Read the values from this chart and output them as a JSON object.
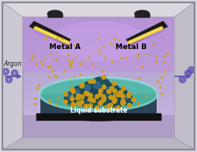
{
  "bg_outer": "#d8d4d8",
  "wall_light": "#e8e4e8",
  "wall_mid": "#d0ccd4",
  "wall_dark": "#b8b4bc",
  "inner_bg_top": "#c8b8e0",
  "inner_bg_bot": "#a898c8",
  "floor_color": "#9890a8",
  "target_color": "#1a1a1a",
  "target_edge": "#333333",
  "glow_yellow": "#e8c840",
  "glow_purple": "#9060c0",
  "particle_color": "#d4a020",
  "argon_color": "#6050b0",
  "petri_teal": "#50b8a8",
  "petri_dark": "#1a3848",
  "petri_rim": "#70d8c8",
  "nano_color": "#1a4858",
  "nano_gold": "#c89818",
  "label_metal_a": "Metal A",
  "label_metal_b": "Metal B",
  "label_argon": "Argon",
  "label_substrate": "Liquid substrate",
  "font_size": 6.5,
  "font_size_small": 5.5
}
